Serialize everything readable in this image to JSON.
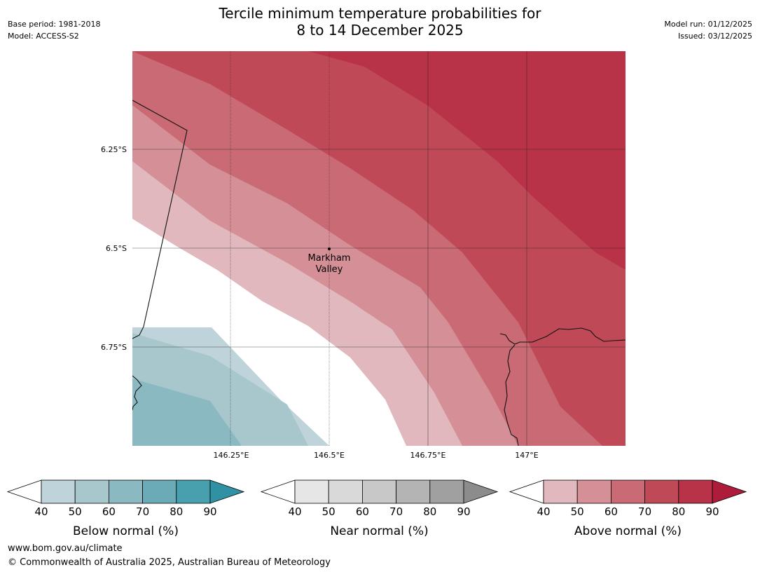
{
  "header": {
    "title_line1": "Tercile minimum temperature probabilities for",
    "title_line2": "8 to 14 December 2025",
    "base_period": "Base period: 1981-2018",
    "model": "Model: ACCESS-S2",
    "model_run": "Model run: 01/12/2025",
    "issued": "Issued: 03/12/2025"
  },
  "map": {
    "lat_labels": [
      "6.25°S",
      "6.5°S",
      "6.75°S"
    ],
    "lon_labels": [
      "146.25°E",
      "146.5°E",
      "146.75°E",
      "147°E"
    ],
    "place_line1": "Markham",
    "place_line2": "Valley"
  },
  "legends": [
    {
      "title": "Below normal (%)",
      "ticks": [
        "40",
        "50",
        "60",
        "70",
        "80",
        "90"
      ],
      "colors": [
        "#bed3da",
        "#a8c7cd",
        "#8bb9c2",
        "#6aabb7",
        "#48a0ae",
        "#2f91a3"
      ]
    },
    {
      "title": "Near normal (%)",
      "ticks": [
        "40",
        "50",
        "60",
        "70",
        "80",
        "90"
      ],
      "colors": [
        "#e6e6e6",
        "#d9d9d9",
        "#c8c8c8",
        "#b4b4b4",
        "#a0a0a0",
        "#8c8c8c"
      ]
    },
    {
      "title": "Above normal (%)",
      "ticks": [
        "40",
        "50",
        "60",
        "70",
        "80",
        "90"
      ],
      "colors": [
        "#e0b8bd",
        "#d59097",
        "#c96a74",
        "#bf4957",
        "#b83248",
        "#ad1c3a"
      ]
    }
  ],
  "footer": {
    "url": "www.bom.gov.au/climate",
    "copyright": "© Commonwealth of Australia 2025, Australian Bureau of Meteorology"
  }
}
